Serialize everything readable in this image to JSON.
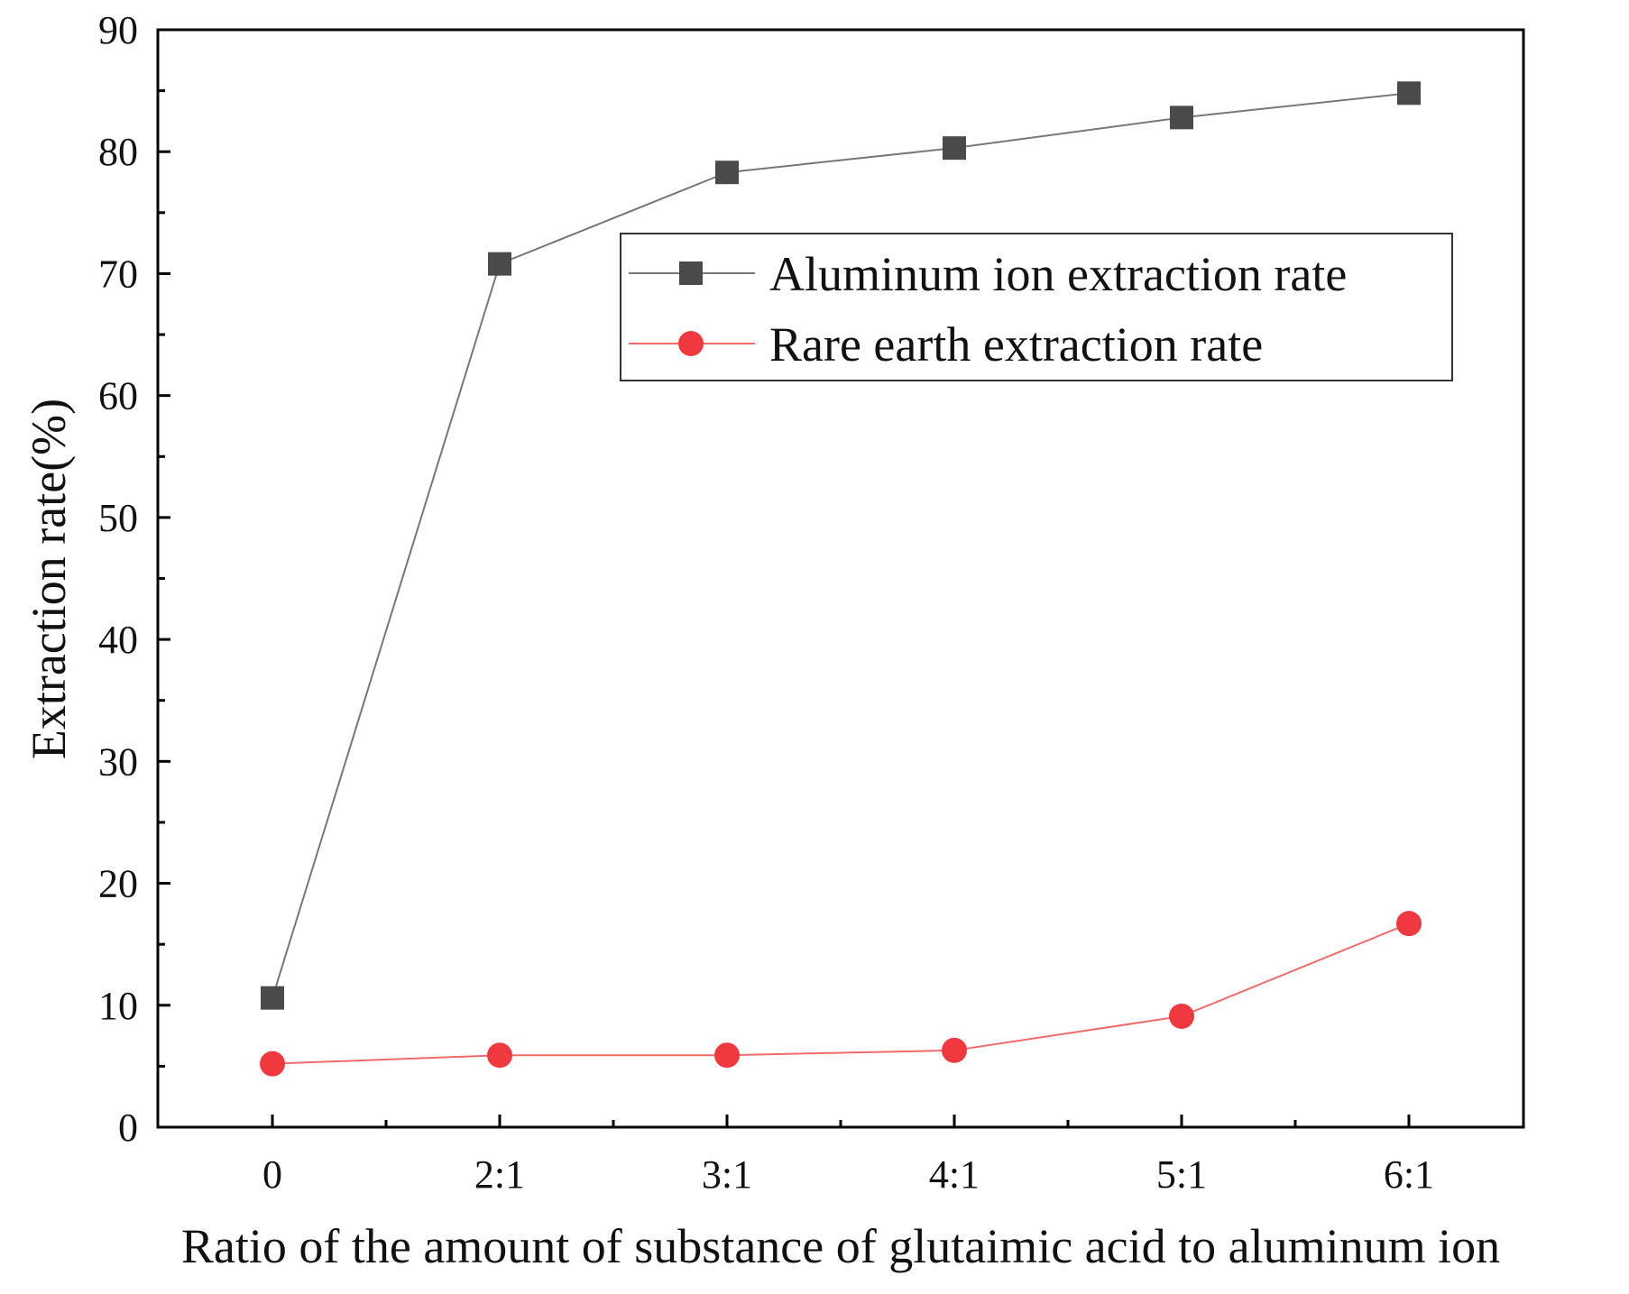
{
  "chart_data": {
    "type": "line",
    "title": "",
    "xlabel": "Ratio of the amount of substance of glutaimic acid to aluminum ion",
    "ylabel": "Extraction rate(%)",
    "categories": [
      "0",
      "2:1",
      "3:1",
      "4:1",
      "5:1",
      "6:1"
    ],
    "ylim": [
      0,
      90
    ],
    "yticks": [
      0,
      10,
      20,
      30,
      40,
      50,
      60,
      70,
      80,
      90
    ],
    "grid": false,
    "legend_position": "top-right",
    "series": [
      {
        "name": "Aluminum ion extraction rate",
        "marker": "square",
        "color": "#4a4a4a",
        "line_color": "#777777",
        "values": [
          10.6,
          70.8,
          78.3,
          80.3,
          82.8,
          84.8
        ]
      },
      {
        "name": "Rare earth extraction rate",
        "marker": "circle",
        "color": "#f0393e",
        "line_color": "#f06a6a",
        "values": [
          5.2,
          5.9,
          5.9,
          6.3,
          9.1,
          16.7
        ]
      }
    ]
  }
}
